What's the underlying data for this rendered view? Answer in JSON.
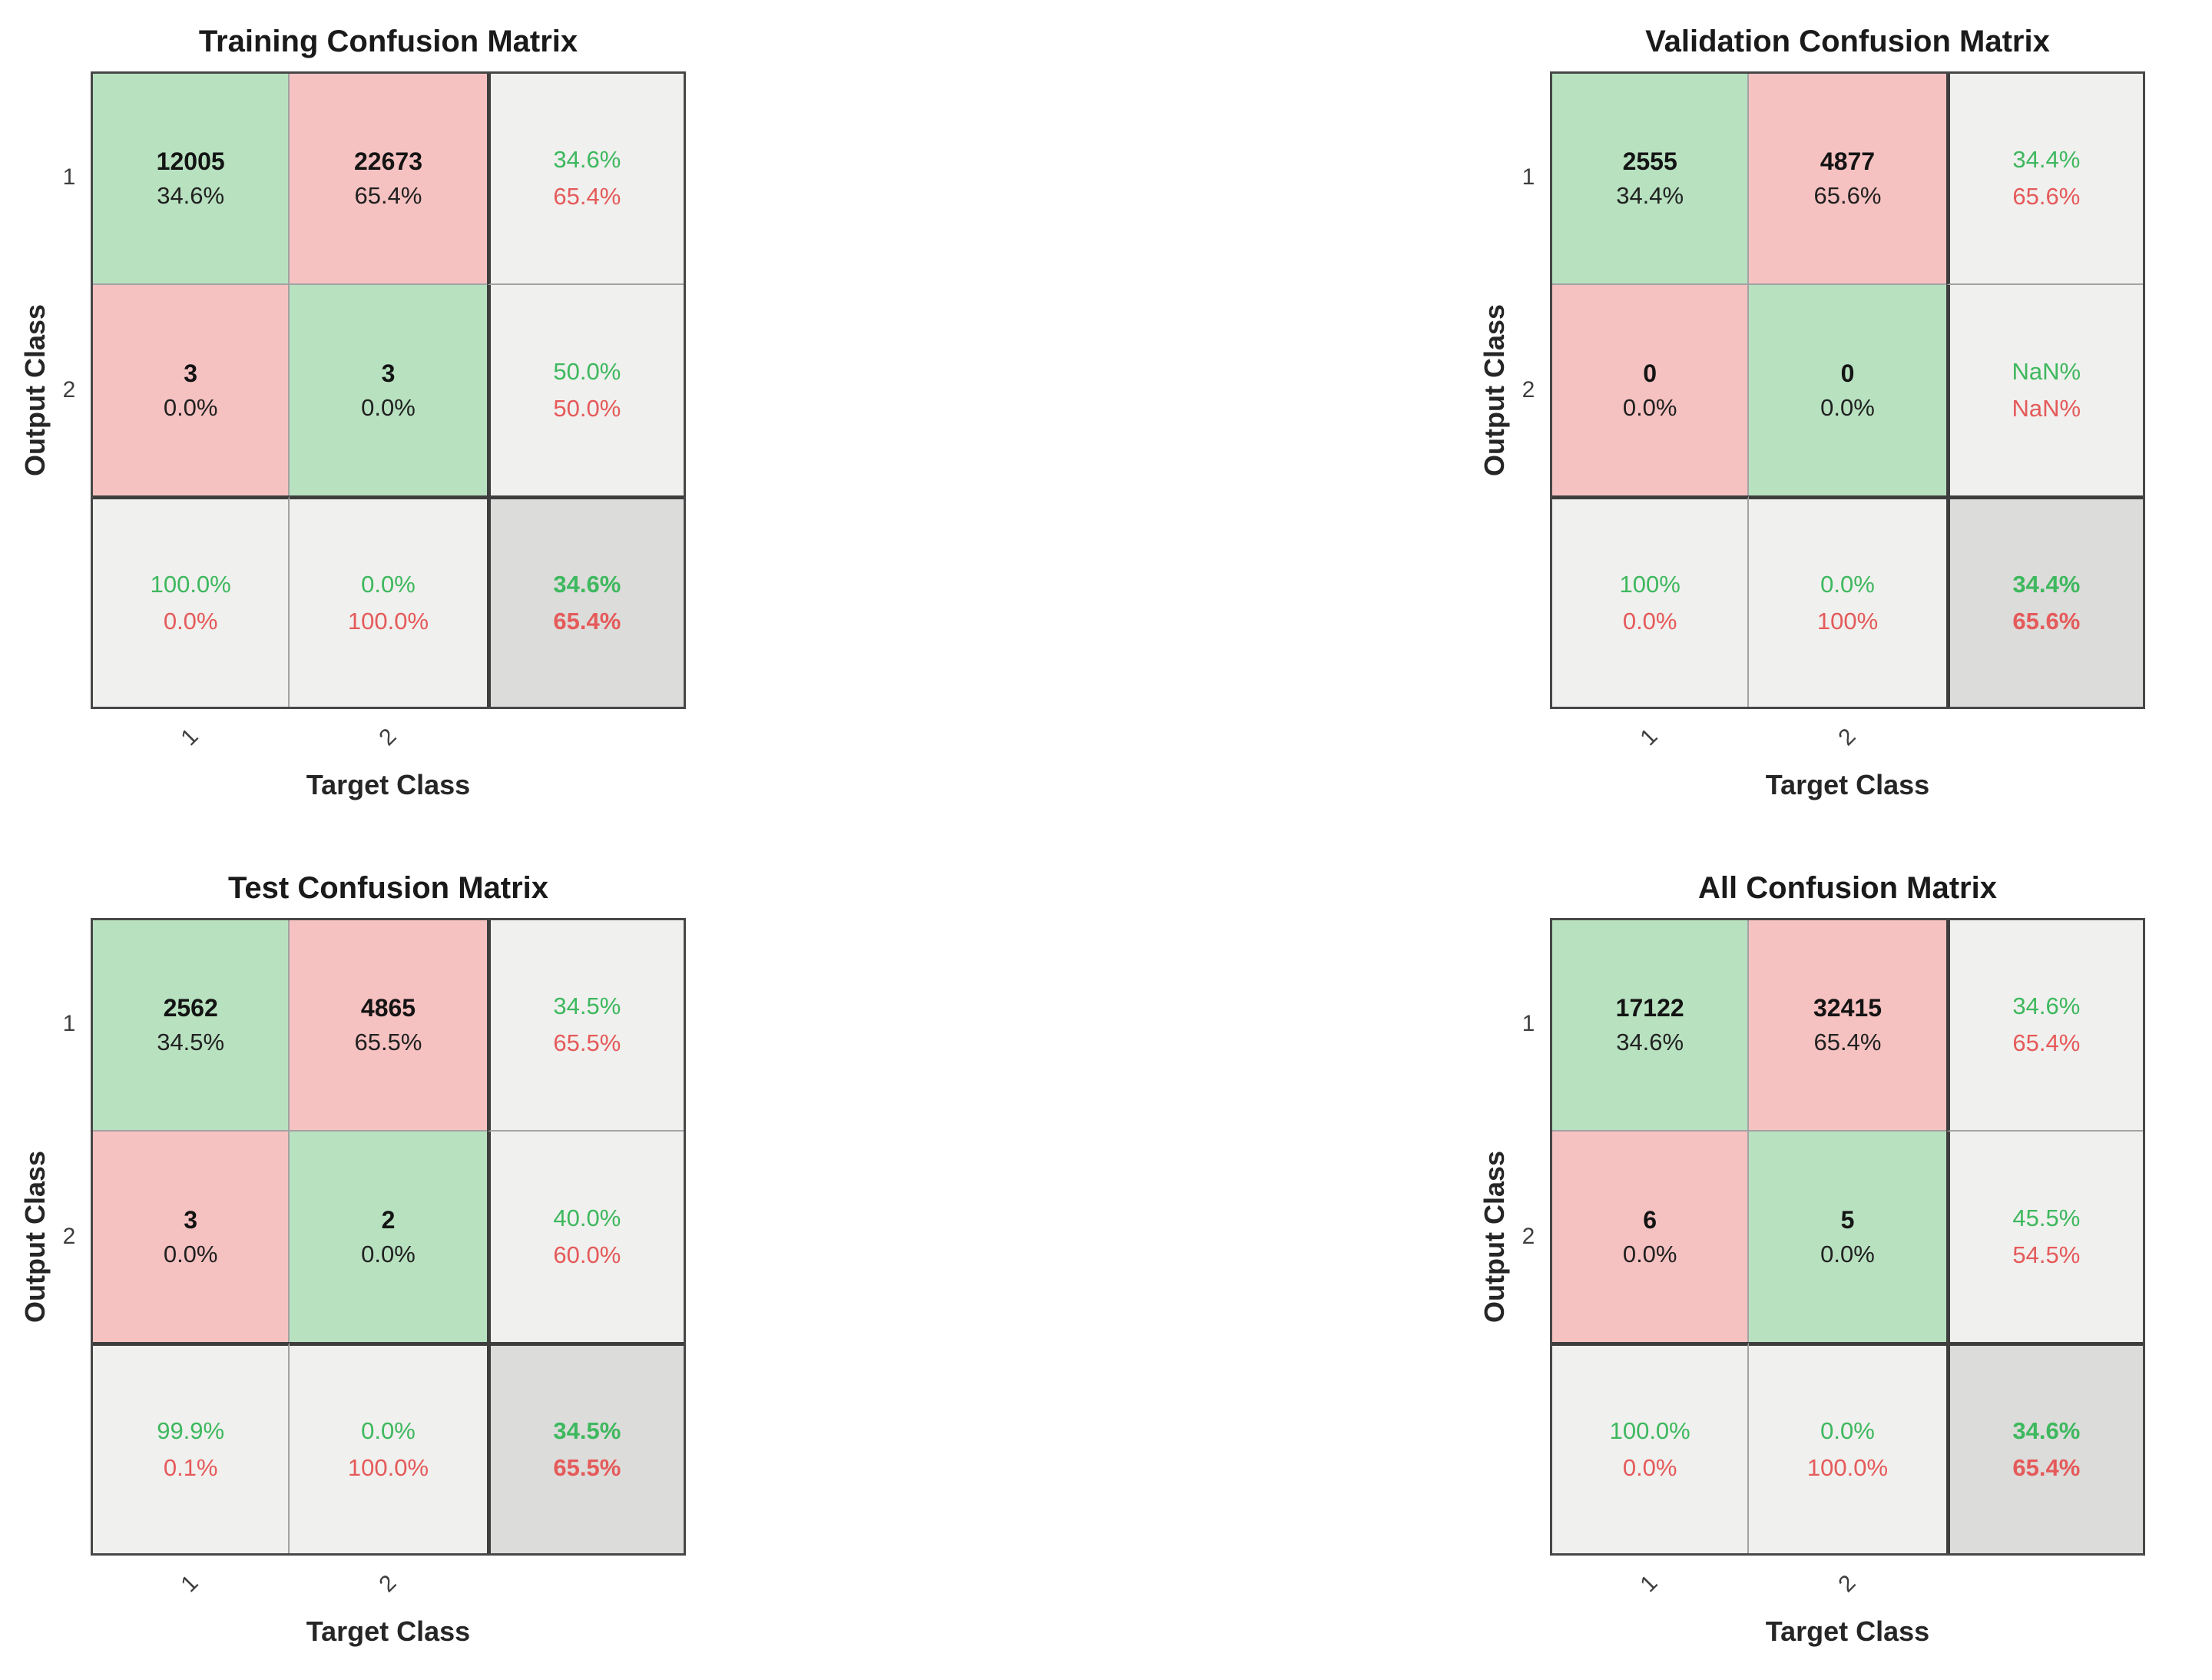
{
  "colors": {
    "correct_cell": "#b8e1c0",
    "incorrect_cell": "#f6c2c1",
    "summary_cell": "#f0f0ee",
    "corner_cell": "#dcdcda",
    "green_text": "#3eb85e",
    "red_text": "#e55a5a",
    "count_text": "#141414",
    "thin_gridline": "#a3a3a3",
    "thick_gridline": "#3e3e3e",
    "background": "#ffffff"
  },
  "chart_data": [
    {
      "type": "heatmap",
      "title": "Training Confusion Matrix",
      "xlabel": "Target Class",
      "ylabel": "Output Class",
      "classes": [
        "1",
        "2"
      ],
      "counts": [
        [
          12005,
          22673
        ],
        [
          3,
          3
        ]
      ],
      "cell_pct": [
        [
          "34.6%",
          "65.4%"
        ],
        [
          "0.0%",
          "0.0%"
        ]
      ],
      "row_summary": [
        [
          "34.6%",
          "65.4%"
        ],
        [
          "50.0%",
          "50.0%"
        ]
      ],
      "col_summary": [
        [
          "100.0%",
          "0.0%"
        ],
        [
          "0.0%",
          "100.0%"
        ]
      ],
      "overall": [
        "34.6%",
        "65.4%"
      ]
    },
    {
      "type": "heatmap",
      "title": "Validation Confusion Matrix",
      "xlabel": "Target Class",
      "ylabel": "Output Class",
      "classes": [
        "1",
        "2"
      ],
      "counts": [
        [
          2555,
          4877
        ],
        [
          0,
          0
        ]
      ],
      "cell_pct": [
        [
          "34.4%",
          "65.6%"
        ],
        [
          "0.0%",
          "0.0%"
        ]
      ],
      "row_summary": [
        [
          "34.4%",
          "65.6%"
        ],
        [
          "NaN%",
          "NaN%"
        ]
      ],
      "col_summary": [
        [
          "100%",
          "0.0%"
        ],
        [
          "0.0%",
          "100%"
        ]
      ],
      "overall": [
        "34.4%",
        "65.6%"
      ]
    },
    {
      "type": "heatmap",
      "title": "Test Confusion Matrix",
      "xlabel": "Target Class",
      "ylabel": "Output Class",
      "classes": [
        "1",
        "2"
      ],
      "counts": [
        [
          2562,
          4865
        ],
        [
          3,
          2
        ]
      ],
      "cell_pct": [
        [
          "34.5%",
          "65.5%"
        ],
        [
          "0.0%",
          "0.0%"
        ]
      ],
      "row_summary": [
        [
          "34.5%",
          "65.5%"
        ],
        [
          "40.0%",
          "60.0%"
        ]
      ],
      "col_summary": [
        [
          "99.9%",
          "0.1%"
        ],
        [
          "0.0%",
          "100.0%"
        ]
      ],
      "overall": [
        "34.5%",
        "65.5%"
      ]
    },
    {
      "type": "heatmap",
      "title": "All Confusion Matrix",
      "xlabel": "Target Class",
      "ylabel": "Output Class",
      "classes": [
        "1",
        "2"
      ],
      "counts": [
        [
          17122,
          32415
        ],
        [
          6,
          5
        ]
      ],
      "cell_pct": [
        [
          "34.6%",
          "65.4%"
        ],
        [
          "0.0%",
          "0.0%"
        ]
      ],
      "row_summary": [
        [
          "34.6%",
          "65.4%"
        ],
        [
          "45.5%",
          "54.5%"
        ]
      ],
      "col_summary": [
        [
          "100.0%",
          "0.0%"
        ],
        [
          "0.0%",
          "100.0%"
        ]
      ],
      "overall": [
        "34.6%",
        "65.4%"
      ]
    }
  ]
}
